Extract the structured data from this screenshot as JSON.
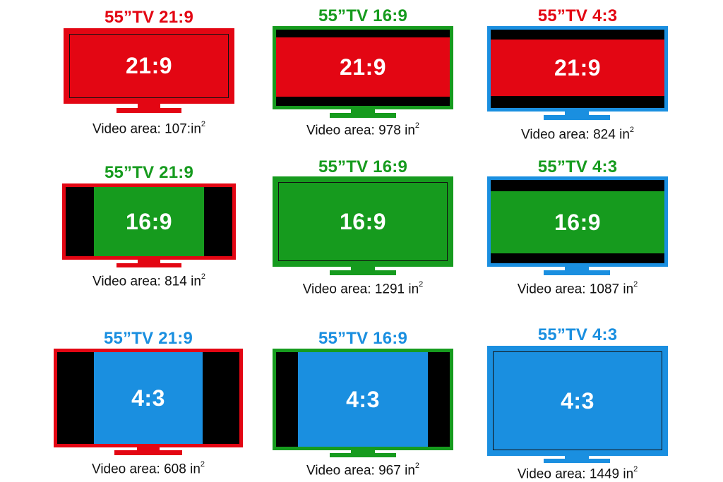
{
  "colors": {
    "red": "#e30613",
    "green": "#169b1e",
    "blue": "#1a8fe0",
    "black": "#000000"
  },
  "caption_prefix": "Video area: ",
  "unit": "in",
  "unit_exponent": "2",
  "rows": [
    {
      "content_ratio": "21:9",
      "cells": [
        {
          "title": "55”TV 21:9",
          "screen_label": "21:9",
          "area": "107:"
        },
        {
          "title": "55”TV 16:9",
          "screen_label": "21:9",
          "area": "978"
        },
        {
          "title": "55”TV 4:3",
          "screen_label": "21:9",
          "area": "824"
        }
      ]
    },
    {
      "content_ratio": "16:9",
      "cells": [
        {
          "title": "55”TV 21:9",
          "screen_label": "16:9",
          "area": "814"
        },
        {
          "title": "55”TV 16:9",
          "screen_label": "16:9",
          "area": "1291"
        },
        {
          "title": "55”TV 4:3",
          "screen_label": "16:9",
          "area": "1087"
        }
      ]
    },
    {
      "content_ratio": "4:3",
      "cells": [
        {
          "title": "55”TV 21:9",
          "screen_label": "4:3",
          "area": "608"
        },
        {
          "title": "55”TV 16:9",
          "screen_label": "4:3",
          "area": "967"
        },
        {
          "title": "55”TV 4:3",
          "screen_label": "4:3",
          "area": "1449"
        }
      ]
    }
  ]
}
